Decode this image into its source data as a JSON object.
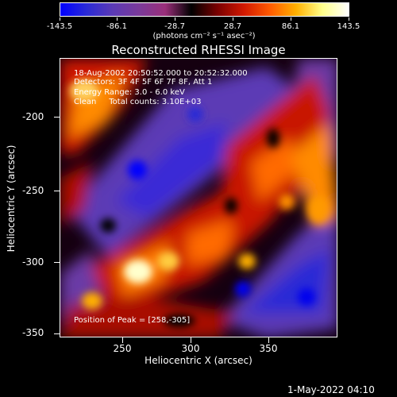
{
  "colorbar": {
    "tick_labels": [
      "-143.5",
      "-86.1",
      "-28.7",
      "28.7",
      "86.1",
      "143.5"
    ],
    "units": "(photons cm⁻² s⁻¹ asec⁻²)",
    "stops": [
      "#0000ff",
      "#2a2ad6",
      "#5b3ab5",
      "#7a3a9a",
      "#9a2f7a",
      "#000000",
      "#7a0000",
      "#d11800",
      "#ff5a00",
      "#ffb000",
      "#ffff8a",
      "#ffffff"
    ]
  },
  "title": "Reconstructed RHESSI Image",
  "info": {
    "time": "18-Aug-2002 20:50:52.000 to 20:52:32.000",
    "detectors": "Detectors: 3F 4F 5F 6F 7F 8F, Att 1",
    "energy": "Energy Range: 3.0 - 6.0 keV",
    "clean": "Clean     Total counts: 3.10E+03",
    "peak": "Position of Peak = [258,-305]"
  },
  "axes": {
    "x_label": "Heliocentric X (arcsec)",
    "y_label": "Heliocentric Y (arcsec)",
    "x_ticks": [
      "250",
      "300",
      "350"
    ],
    "y_ticks": [
      "-200",
      "-250",
      "-300",
      "-350"
    ],
    "x_range": [
      208,
      397
    ],
    "y_range": [
      -353,
      -163
    ]
  },
  "footer": {
    "date": "1-May-2022 04:10"
  }
}
